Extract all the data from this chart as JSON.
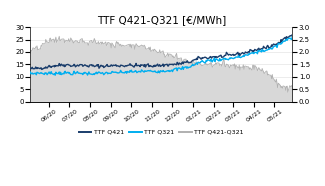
{
  "title": "TTF Q421-Q321 [€/MWh]",
  "title_fontsize": 7.5,
  "left_ylim": [
    0,
    30
  ],
  "right_ylim": [
    0,
    3
  ],
  "left_yticks": [
    0,
    5,
    10,
    15,
    20,
    25,
    30
  ],
  "right_yticks": [
    0,
    0.5,
    1,
    1.5,
    2,
    2.5,
    3
  ],
  "color_q421": "#1a3d6b",
  "color_q321": "#00aeef",
  "color_diff_line": "#b0b0b0",
  "color_diff_fill": "#d8d8d8",
  "legend_labels": [
    "TTF Q421",
    "TTF Q321",
    "TTF Q421-Q321"
  ],
  "line_width": 1.0,
  "grid_color": "#dddddd",
  "t_knots": [
    0,
    0.04,
    0.08,
    0.12,
    0.18,
    0.25,
    0.32,
    0.38,
    0.44,
    0.5,
    0.55,
    0.6,
    0.65,
    0.7,
    0.75,
    0.8,
    0.85,
    0.88,
    0.91,
    0.94,
    0.97,
    1.0
  ],
  "q421_vals": [
    13.2,
    13.5,
    14.2,
    14.8,
    14.6,
    14.3,
    14.5,
    14.6,
    14.4,
    14.6,
    15.0,
    15.8,
    17.5,
    18.0,
    18.5,
    19.2,
    20.5,
    21.5,
    22.0,
    23.5,
    25.5,
    27.0
  ],
  "q321_vals": [
    11.3,
    11.5,
    11.3,
    11.6,
    11.4,
    11.3,
    11.6,
    12.0,
    12.2,
    12.3,
    12.8,
    13.8,
    16.0,
    16.8,
    17.2,
    18.0,
    19.5,
    20.5,
    21.0,
    22.5,
    24.5,
    26.0
  ],
  "diff_vals": [
    2.0,
    2.2,
    2.5,
    2.5,
    2.4,
    2.4,
    2.3,
    2.3,
    2.2,
    2.0,
    1.8,
    1.6,
    1.5,
    1.5,
    1.5,
    1.4,
    1.4,
    1.3,
    1.1,
    0.7,
    0.55,
    0.55
  ],
  "noise_q421_seed": 42,
  "noise_q321_seed": 7,
  "noise_diff_seed": 13,
  "noise_q421_amp": 0.35,
  "noise_q321_amp": 0.35,
  "noise_diff_amp": 0.07
}
